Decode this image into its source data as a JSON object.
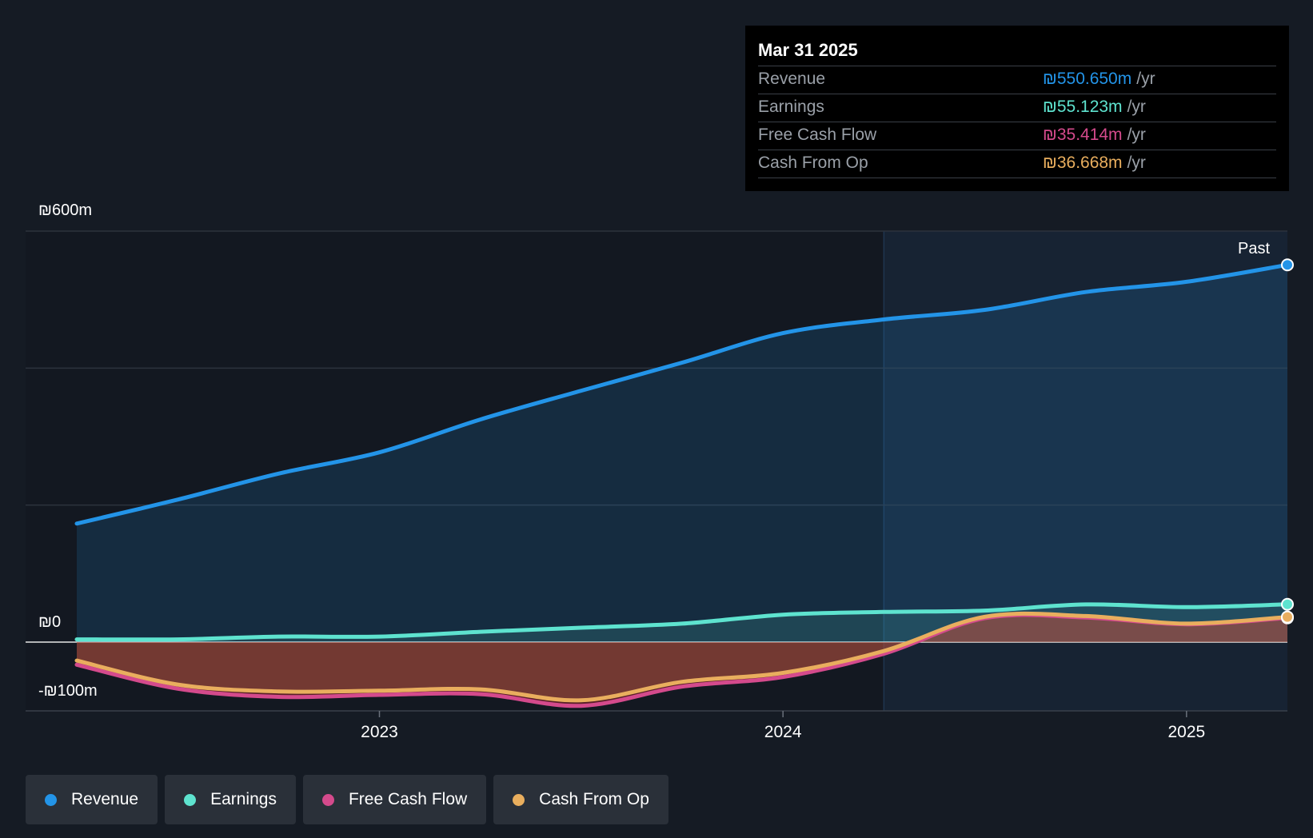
{
  "tooltip": {
    "date": "Mar 31 2025",
    "rows": [
      {
        "label": "Revenue",
        "value": "₪550.650m",
        "unit": "/yr",
        "color": "#2394e8"
      },
      {
        "label": "Earnings",
        "value": "₪55.123m",
        "unit": "/yr",
        "color": "#5ee3cf"
      },
      {
        "label": "Free Cash Flow",
        "value": "₪35.414m",
        "unit": "/yr",
        "color": "#d44a8c"
      },
      {
        "label": "Cash From Op",
        "value": "₪36.668m",
        "unit": "/yr",
        "color": "#e9ae5e"
      }
    ]
  },
  "axis": {
    "top_label": "₪600m",
    "zero_label": "₪0",
    "bottom_label": "-₪100m"
  },
  "past_label": "Past",
  "legend": [
    {
      "label": "Revenue",
      "color": "#2394e8"
    },
    {
      "label": "Earnings",
      "color": "#5ee3cf"
    },
    {
      "label": "Free Cash Flow",
      "color": "#d44a8c"
    },
    {
      "label": "Cash From Op",
      "color": "#e9ae5e"
    }
  ],
  "chart_data": {
    "type": "line",
    "title": "",
    "xlabel": "",
    "ylabel": "",
    "ylim": [
      -100,
      600
    ],
    "xlim": [
      2022.25,
      2025.25
    ],
    "x_ticks": [
      {
        "value": 2023,
        "label": "2023"
      },
      {
        "value": 2024,
        "label": "2024"
      },
      {
        "value": 2025,
        "label": "2025"
      }
    ],
    "past_boundary": 2024.25,
    "x": [
      2022.25,
      2022.5,
      2022.75,
      2023.0,
      2023.25,
      2023.5,
      2023.75,
      2024.0,
      2024.25,
      2024.5,
      2024.75,
      2025.0,
      2025.25
    ],
    "series": [
      {
        "name": "Revenue",
        "color": "#2394e8",
        "values": [
          173,
          208,
          246,
          277,
          325,
          367,
          408,
          451,
          471,
          485,
          511,
          526,
          550.65
        ]
      },
      {
        "name": "Earnings",
        "color": "#5ee3cf",
        "values": [
          4,
          4,
          8,
          8,
          15,
          21,
          27,
          40,
          44,
          46,
          55,
          51,
          55.12
        ]
      },
      {
        "name": "Free Cash Flow",
        "color": "#d44a8c",
        "values": [
          -33,
          -68,
          -80,
          -77,
          -76,
          -93,
          -65,
          -51,
          -17,
          35,
          36,
          26,
          35.41
        ]
      },
      {
        "name": "Cash From Op",
        "color": "#e9ae5e",
        "values": [
          -27,
          -62,
          -72,
          -71,
          -69,
          -85,
          -58,
          -45,
          -13,
          37,
          38,
          27,
          36.67
        ]
      }
    ]
  }
}
